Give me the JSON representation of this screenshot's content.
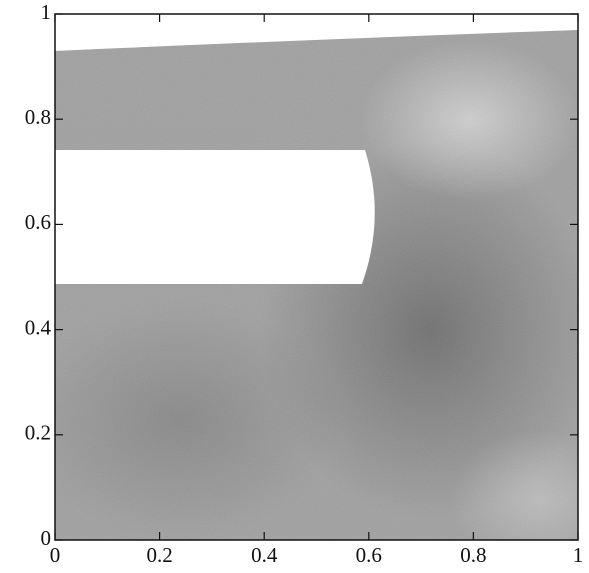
{
  "chart_data": {
    "type": "density",
    "xlim": [
      0,
      1
    ],
    "ylim": [
      0,
      1
    ],
    "xticks": [
      0,
      0.2,
      0.4,
      0.6,
      0.8,
      1
    ],
    "yticks": [
      0,
      0.2,
      0.4,
      0.6,
      0.8,
      1
    ]
  }
}
